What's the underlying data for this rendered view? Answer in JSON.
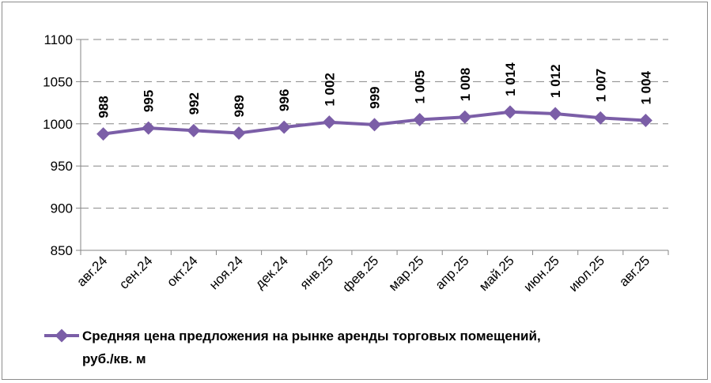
{
  "chart_data": {
    "type": "line",
    "categories": [
      "авг.24",
      "сен.24",
      "окт.24",
      "ноя.24",
      "дек.24",
      "янв.25",
      "фев.25",
      "мар.25",
      "апр.25",
      "май.25",
      "июн.25",
      "июл.25",
      "авг.25"
    ],
    "series": [
      {
        "name": "Средняя цена предложения на рынке аренды торговых помещений, руб./кв. м",
        "values": [
          988,
          995,
          992,
          989,
          996,
          1002,
          999,
          1005,
          1008,
          1014,
          1012,
          1007,
          1004
        ],
        "labels": [
          "988",
          "995",
          "992",
          "989",
          "996",
          "1 002",
          "999",
          "1 005",
          "1 008",
          "1 014",
          "1 012",
          "1 007",
          "1 004"
        ],
        "color": "#7b5ea7"
      }
    ],
    "ylim": [
      850,
      1100
    ],
    "yticks": [
      "850",
      "900",
      "950",
      "1000",
      "1050",
      "1100"
    ],
    "grid": "dashed-horizontal",
    "legend": {
      "placement": "bottom",
      "line1": "Средняя цена предложения на рынке аренды торговых помещений,",
      "line2": "руб./кв. м"
    },
    "axis_color": "#868686",
    "grid_color": "#868686"
  }
}
